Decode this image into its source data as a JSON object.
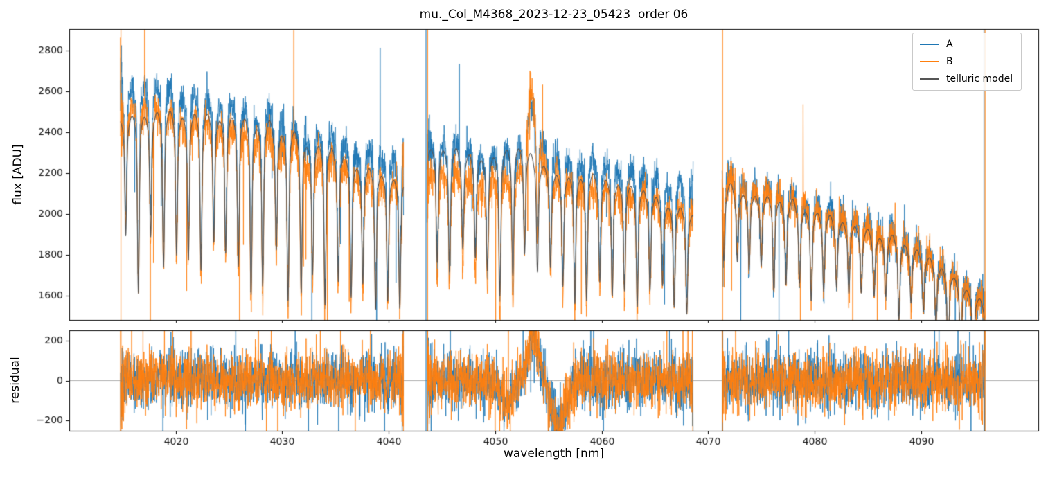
{
  "chart_data": {
    "type": "line",
    "title": "mu._Col_M4368_2023-12-23_05423  order 06",
    "xlabel": "wavelength [nm]",
    "grid": false,
    "background": "#ffffff",
    "axis_color": "#000000",
    "xlim": [
      4010,
      4101
    ],
    "xticks": [
      4020,
      4030,
      4040,
      4050,
      4060,
      4070,
      4080,
      4090
    ],
    "segments": [
      [
        4014.8,
        4041.4
      ],
      [
        4043.6,
        4068.6
      ],
      [
        4071.3,
        4096.0
      ]
    ],
    "panels": {
      "flux": {
        "ylabel": "flux [ADU]",
        "ylim": [
          1480,
          2905
        ],
        "yticks": [
          1600,
          1800,
          2000,
          2200,
          2400,
          2600,
          2800
        ]
      },
      "residual": {
        "ylabel": "residual",
        "ylim": [
          -252,
          252
        ],
        "yticks": [
          -200,
          0,
          200
        ],
        "zero_line": true,
        "zero_line_color": "#999999"
      }
    },
    "series": [
      {
        "name": "A",
        "color": "#1f77b4",
        "continuum": [
          [
            4014.8,
            2810
          ],
          [
            4017,
            2790
          ],
          [
            4020,
            2760
          ],
          [
            4023,
            2720
          ],
          [
            4026,
            2680
          ],
          [
            4029,
            2630
          ],
          [
            4032,
            2560
          ],
          [
            4035,
            2510
          ],
          [
            4038,
            2450
          ],
          [
            4041.4,
            2410
          ],
          [
            4043.6,
            2500
          ],
          [
            4046,
            2470
          ],
          [
            4049,
            2440
          ],
          [
            4052,
            2450
          ],
          [
            4054,
            2460
          ],
          [
            4056,
            2430
          ],
          [
            4058,
            2410
          ],
          [
            4060,
            2390
          ],
          [
            4062,
            2360
          ],
          [
            4064,
            2340
          ],
          [
            4066,
            2300
          ],
          [
            4068.6,
            2260
          ],
          [
            4071.3,
            2340
          ],
          [
            4073,
            2310
          ],
          [
            4076,
            2260
          ],
          [
            4079,
            2200
          ],
          [
            4082,
            2140
          ],
          [
            4085,
            2080
          ],
          [
            4088,
            2010
          ],
          [
            4090,
            1950
          ],
          [
            4092,
            1870
          ],
          [
            4094,
            1760
          ],
          [
            4096,
            1660
          ]
        ]
      },
      {
        "name": "B",
        "color": "#ff7f0e",
        "continuum": [
          [
            4014.8,
            2690
          ],
          [
            4017,
            2670
          ],
          [
            4020,
            2640
          ],
          [
            4023,
            2600
          ],
          [
            4026,
            2560
          ],
          [
            4029,
            2510
          ],
          [
            4032,
            2440
          ],
          [
            4035,
            2380
          ],
          [
            4038,
            2320
          ],
          [
            4041.4,
            2280
          ],
          [
            4043.6,
            2360
          ],
          [
            4046,
            2330
          ],
          [
            4049,
            2300
          ],
          [
            4052,
            2310
          ],
          [
            4054,
            2330
          ],
          [
            4056,
            2300
          ],
          [
            4058,
            2280
          ],
          [
            4060,
            2260
          ],
          [
            4062,
            2230
          ],
          [
            4064,
            2210
          ],
          [
            4066,
            2170
          ],
          [
            4068.6,
            2130
          ],
          [
            4071.3,
            2320
          ],
          [
            4073,
            2290
          ],
          [
            4076,
            2240
          ],
          [
            4079,
            2180
          ],
          [
            4082,
            2120
          ],
          [
            4085,
            2060
          ],
          [
            4088,
            2000
          ],
          [
            4090,
            1940
          ],
          [
            4092,
            1860
          ],
          [
            4094,
            1750
          ],
          [
            4096,
            1650
          ]
        ]
      },
      {
        "name": "telluric model",
        "color": "#555555",
        "continuum": [
          [
            4014.8,
            2630
          ],
          [
            4017,
            2640
          ],
          [
            4020,
            2650
          ],
          [
            4023,
            2640
          ],
          [
            4026,
            2620
          ],
          [
            4029,
            2580
          ],
          [
            4032,
            2520
          ],
          [
            4035,
            2440
          ],
          [
            4038,
            2360
          ],
          [
            4041.4,
            2300
          ],
          [
            4043.6,
            2480
          ],
          [
            4046,
            2450
          ],
          [
            4049,
            2420
          ],
          [
            4052,
            2420
          ],
          [
            4054,
            2370
          ],
          [
            4056,
            2330
          ],
          [
            4058,
            2330
          ],
          [
            4060,
            2310
          ],
          [
            4062,
            2280
          ],
          [
            4064,
            2240
          ],
          [
            4066,
            2190
          ],
          [
            4068.6,
            2130
          ],
          [
            4071.3,
            2270
          ],
          [
            4073,
            2250
          ],
          [
            4076,
            2210
          ],
          [
            4079,
            2160
          ],
          [
            4082,
            2100
          ],
          [
            4085,
            2040
          ],
          [
            4088,
            1990
          ],
          [
            4090,
            1930
          ],
          [
            4092,
            1850
          ],
          [
            4094,
            1740
          ],
          [
            4096,
            1650
          ]
        ]
      }
    ],
    "absorption_comb": {
      "start": 4015.35,
      "spacing": 1.17,
      "sigma": 0.085,
      "depth_min": 0.18,
      "depth_max": 0.3,
      "broad_depth": 0.1,
      "broad_sigma": 0.38,
      "center_jitter": 0.12,
      "depth_scale": [
        [
          4014,
          1.0
        ],
        [
          4041,
          0.9
        ],
        [
          4043,
          0.85
        ],
        [
          4069,
          0.7
        ],
        [
          4071,
          0.6
        ],
        [
          4090,
          0.55
        ],
        [
          4096,
          0.9
        ]
      ]
    },
    "emission_feature": {
      "center": 4053.45,
      "sigma": 0.55,
      "amplitude_A": 260,
      "amplitude_B": 440,
      "model_bump": {
        "center": 4052.4,
        "amplitude": 80,
        "sigma": 0.9
      }
    },
    "residual_features": [
      {
        "center": 4053.6,
        "amplitude": 235,
        "sigma": 0.55
      },
      {
        "center": 4051.2,
        "amplitude": -130,
        "sigma": 0.5
      },
      {
        "center": 4055.9,
        "amplitude": -200,
        "sigma": 0.8
      }
    ],
    "noise": {
      "flux_sigma": 45,
      "residual_sigma": 72,
      "outlier_prob": 0.004,
      "outlier_scale": 520,
      "edge_boost_flux": 3,
      "edge_boost_resid": 3.5,
      "edge_width": 0.13
    },
    "vlines": [
      {
        "x": 4014.85,
        "color": "#ff7f0e"
      },
      {
        "x": 4043.5,
        "color": "#1f77b4"
      },
      {
        "x": 4043.65,
        "color": "#ff7f0e"
      },
      {
        "x": 4071.35,
        "color": "#ff7f0e"
      },
      {
        "x": 4095.9,
        "color": "#1f77b4"
      },
      {
        "x": 4096.0,
        "color": "#ff7f0e"
      }
    ],
    "legend": {
      "position": "upper right",
      "entries": [
        {
          "label": "A",
          "color": "#1f77b4"
        },
        {
          "label": "B",
          "color": "#ff7f0e"
        },
        {
          "label": "telluric model",
          "color": "#555555"
        }
      ]
    }
  }
}
